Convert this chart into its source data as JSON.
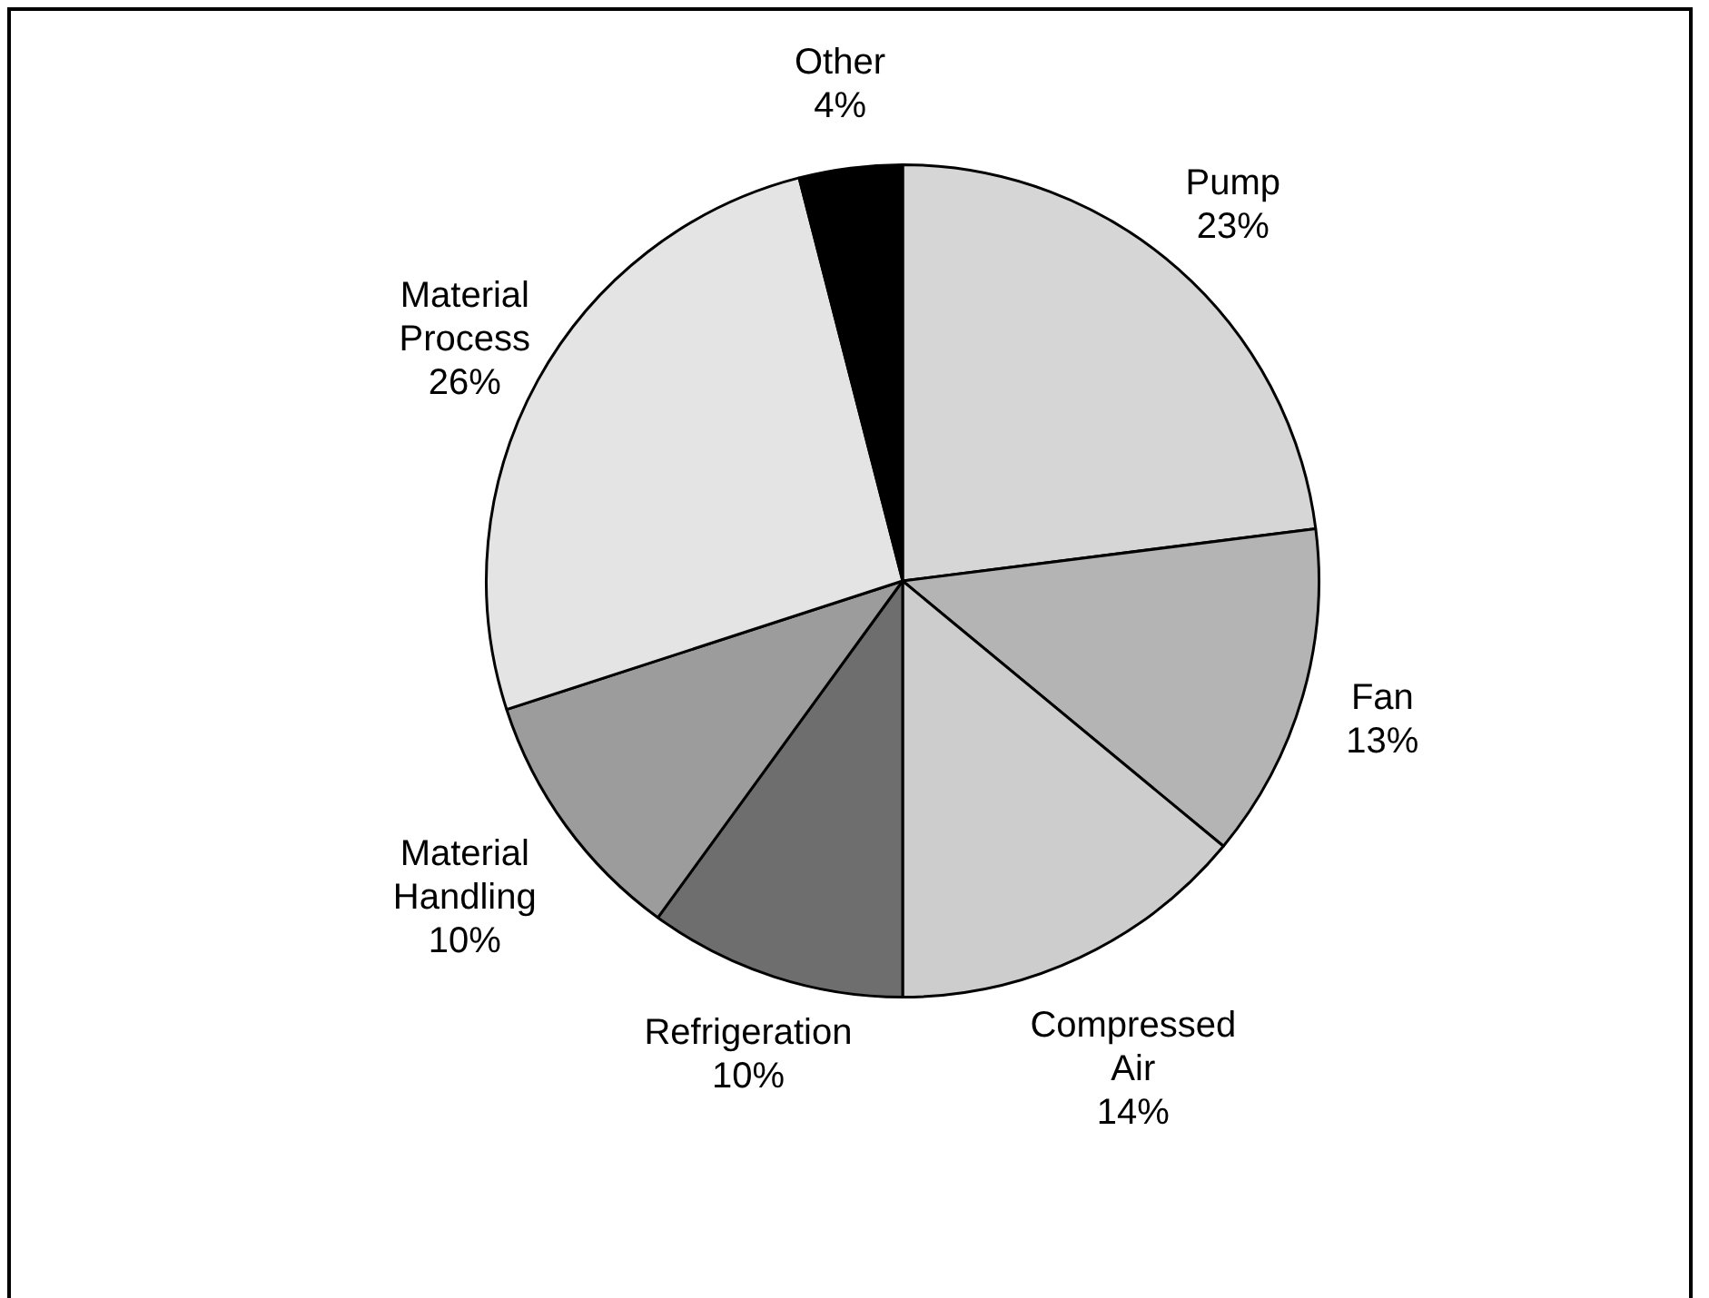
{
  "chart_data": {
    "type": "pie",
    "categories": [
      "Pump",
      "Fan",
      "Compressed Air",
      "Refrigeration",
      "Material Handling",
      "Material Process",
      "Other"
    ],
    "values": [
      23,
      13,
      14,
      10,
      10,
      26,
      4
    ],
    "value_labels": [
      "23%",
      "13%",
      "14%",
      "10%",
      "10%",
      "26%",
      "4%"
    ],
    "colors": [
      "#d6d6d6",
      "#b4b4b4",
      "#cdcdcd",
      "#6e6e6e",
      "#9c9c9c",
      "#e4e4e4",
      "#000000"
    ]
  }
}
